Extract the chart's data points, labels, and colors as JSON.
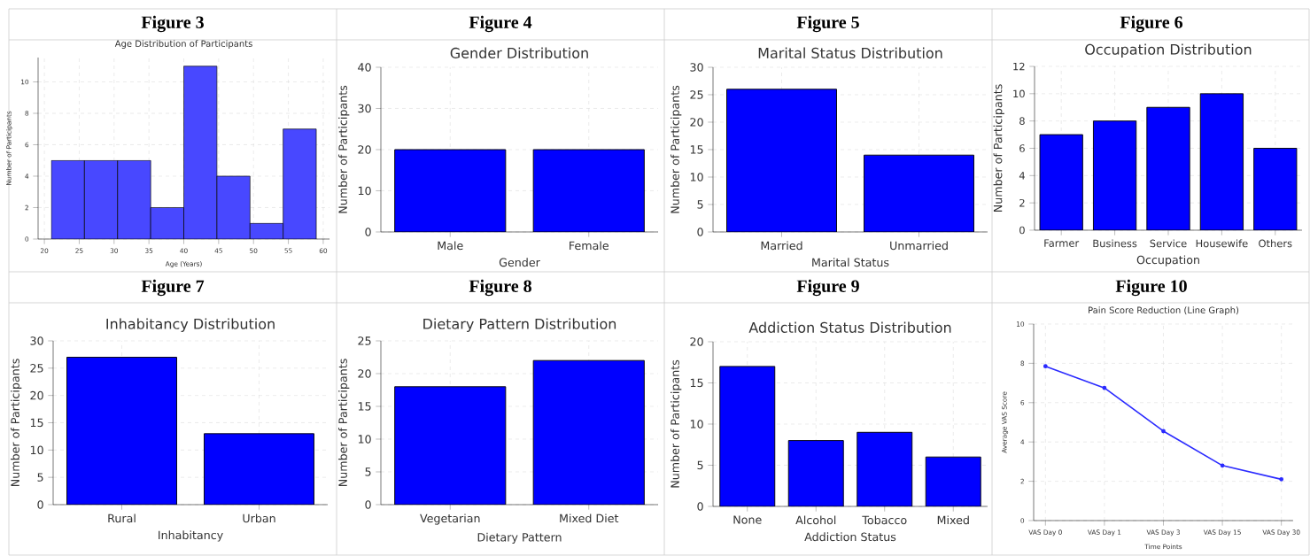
{
  "chart_data": [
    {
      "type": "histogram",
      "title": "Figure 3",
      "subtitle": "Age Distribution of Participants",
      "xlabel": "Age (Years)",
      "ylabel": "Number of Participants",
      "bins": [
        21,
        25.75,
        30.5,
        35.25,
        40,
        44.75,
        49.5,
        54.25,
        59
      ],
      "values": [
        5,
        5,
        5,
        2,
        11,
        4,
        1,
        7
      ],
      "color": "#4848ff",
      "xlim": [
        19.1,
        60.9
      ],
      "xticks": [
        20,
        25,
        30,
        35,
        40,
        45,
        50,
        55,
        60
      ],
      "ylim": [
        0,
        11.55
      ],
      "yticks": [
        0,
        2,
        4,
        6,
        8,
        10
      ],
      "grid": true
    },
    {
      "type": "bar",
      "title": "Figure 4",
      "subtitle": "Gender Distribution",
      "xlabel": "Gender",
      "ylabel": "Number of Participants",
      "categories": [
        "Male",
        "Female"
      ],
      "values": [
        20,
        20
      ],
      "color": "#0000ff",
      "ylim": [
        0,
        40
      ],
      "yticks": [
        0,
        10,
        20,
        30,
        40
      ],
      "grid": true
    },
    {
      "type": "bar",
      "title": "Figure 5",
      "subtitle": "Marital Status Distribution",
      "xlabel": "Marital Status",
      "ylabel": "Number of Participants",
      "categories": [
        "Married",
        "Unmarried"
      ],
      "values": [
        26,
        14
      ],
      "color": "#0000ff",
      "ylim": [
        0,
        30
      ],
      "yticks": [
        0,
        5,
        10,
        15,
        20,
        25,
        30
      ],
      "grid": true
    },
    {
      "type": "bar",
      "title": "Figure 6",
      "subtitle": "Occupation Distribution",
      "xlabel": "Occupation",
      "ylabel": "Number of Participants",
      "categories": [
        "Farmer",
        "Business",
        "Service",
        "Housewife",
        "Others"
      ],
      "values": [
        7,
        8,
        9,
        10,
        6
      ],
      "color": "#0000ff",
      "ylim": [
        0,
        12
      ],
      "yticks": [
        0,
        2,
        4,
        6,
        8,
        10,
        12
      ],
      "grid": true
    },
    {
      "type": "bar",
      "title": "Figure 7",
      "subtitle": "Inhabitancy Distribution",
      "xlabel": "Inhabitancy",
      "ylabel": "Number of Participants",
      "categories": [
        "Rural",
        "Urban"
      ],
      "values": [
        27,
        13
      ],
      "color": "#0000ff",
      "ylim": [
        0,
        30
      ],
      "yticks": [
        0,
        5,
        10,
        15,
        20,
        25,
        30
      ],
      "grid": true
    },
    {
      "type": "bar",
      "title": "Figure 8",
      "subtitle": "Dietary Pattern Distribution",
      "xlabel": "Dietary Pattern",
      "ylabel": "Number of Participants",
      "categories": [
        "Vegetarian",
        "Mixed Diet"
      ],
      "values": [
        18,
        22
      ],
      "color": "#0000ff",
      "ylim": [
        0,
        25
      ],
      "yticks": [
        0,
        5,
        10,
        15,
        20,
        25
      ],
      "grid": true
    },
    {
      "type": "bar",
      "title": "Figure 9",
      "subtitle": "Addiction Status Distribution",
      "xlabel": "Addiction Status",
      "ylabel": "Number of Participants",
      "categories": [
        "None",
        "Alcohol",
        "Tobacco",
        "Mixed"
      ],
      "values": [
        17,
        8,
        9,
        6
      ],
      "color": "#0000ff",
      "ylim": [
        0,
        20
      ],
      "yticks": [
        0,
        5,
        10,
        15,
        20
      ],
      "grid": true
    },
    {
      "type": "line",
      "title": "Figure 10",
      "subtitle": "Pain Score Reduction (Line Graph)",
      "xlabel": "Time Points",
      "ylabel": "Average VAS Score",
      "categories": [
        "VAS Day 0",
        "VAS Day 1",
        "VAS Day 3",
        "VAS Day 15",
        "VAS Day 30"
      ],
      "values": [
        7.85,
        6.75,
        4.55,
        2.8,
        2.1
      ],
      "color": "#2b2bff",
      "marker": "circle",
      "ylim": [
        0,
        10
      ],
      "yticks": [
        0,
        2,
        4,
        6,
        8,
        10
      ],
      "grid": true
    }
  ]
}
